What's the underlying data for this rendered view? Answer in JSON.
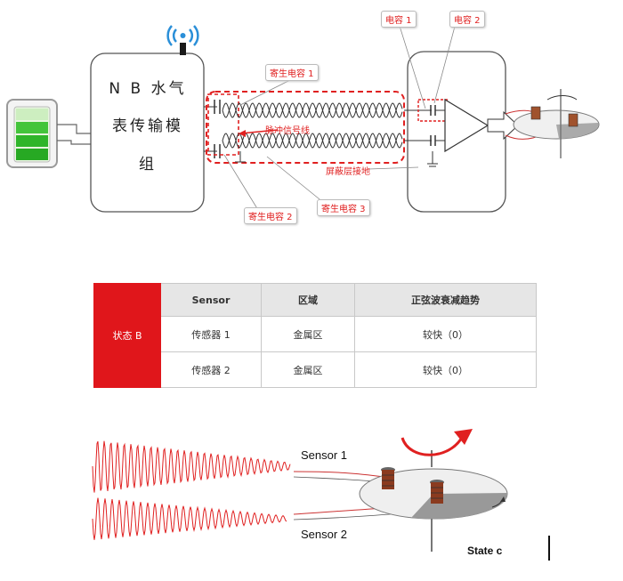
{
  "top_diagram": {
    "module_lines": [
      "N B 水气",
      "表传输模",
      "组"
    ],
    "callouts": {
      "cap1": "电容 1",
      "cap2": "电容 2",
      "parasitic1": "寄生电容 1",
      "parasitic2": "寄生电容 2",
      "parasitic3": "寄生电容 3"
    },
    "pulse_line": "脉冲信号线",
    "shield_ground": "屏蔽层接地"
  },
  "table": {
    "state": "状态 B",
    "headers": [
      "Sensor",
      "区域",
      "正弦波衰减趋势"
    ],
    "rows": [
      [
        "传感器 1",
        "金属区",
        "较快（0）"
      ],
      [
        "传感器 2",
        "金属区",
        "较快（0）"
      ]
    ]
  },
  "bottom_diagram": {
    "sensor1": "Sensor 1",
    "sensor2": "Sensor 2",
    "state": "State c"
  }
}
